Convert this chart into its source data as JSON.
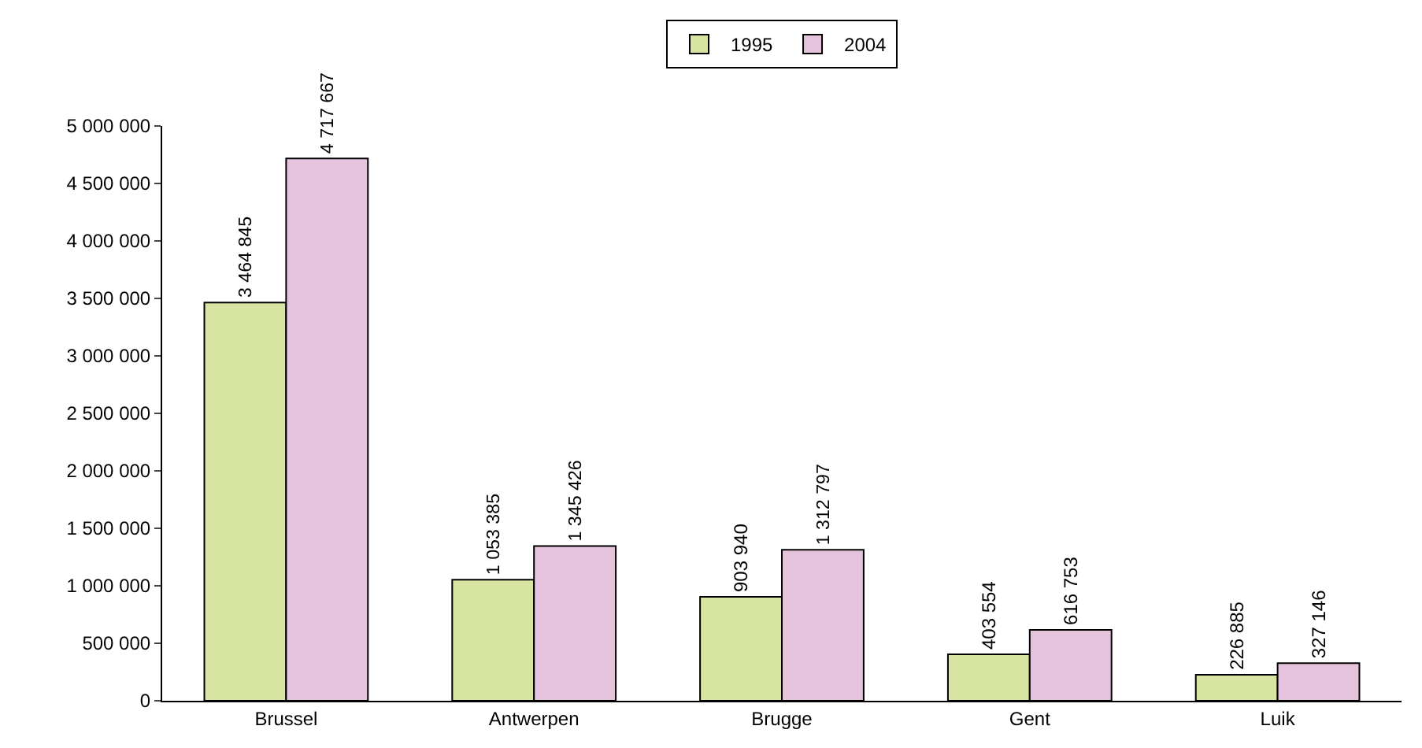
{
  "chart_data": {
    "type": "bar",
    "categories": [
      "Brussel",
      "Antwerpen",
      "Brugge",
      "Gent",
      "Luik"
    ],
    "series": [
      {
        "name": "1995",
        "color": "#d7e4a2",
        "values": [
          3464845,
          1053385,
          903940,
          403554,
          226885
        ],
        "value_labels": [
          "3 464 845",
          "1 053 385",
          "903 940",
          "403 554",
          "226 885"
        ]
      },
      {
        "name": "2004",
        "color": "#e6c3dc",
        "values": [
          4717667,
          1345426,
          1312797,
          616753,
          327146
        ],
        "value_labels": [
          "4 717 667",
          "1 345 426",
          "1 312 797",
          "616 753",
          "327 146"
        ]
      }
    ],
    "ylim": [
      0,
      5000000
    ],
    "yticks": [
      {
        "value": 0,
        "label": "0"
      },
      {
        "value": 500000,
        "label": "500 000"
      },
      {
        "value": 1000000,
        "label": "1 000 000"
      },
      {
        "value": 1500000,
        "label": "1 500 000"
      },
      {
        "value": 2000000,
        "label": "2 000 000"
      },
      {
        "value": 2500000,
        "label": "2 500 000"
      },
      {
        "value": 3000000,
        "label": "3 000 000"
      },
      {
        "value": 3500000,
        "label": "3 500 000"
      },
      {
        "value": 4000000,
        "label": "4 000 000"
      },
      {
        "value": 4500000,
        "label": "4 500 000"
      },
      {
        "value": 5000000,
        "label": "5 000 000"
      }
    ],
    "legend": "top"
  }
}
